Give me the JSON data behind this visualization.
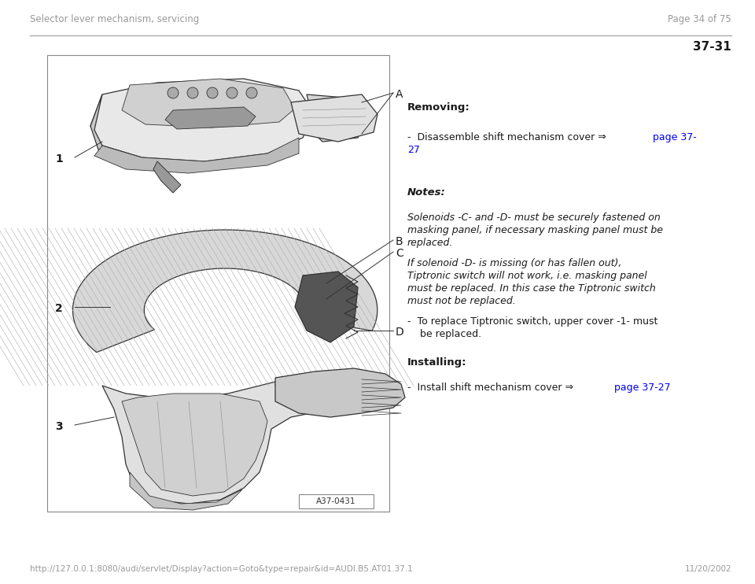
{
  "bg_color": "#ffffff",
  "header_left": "Selector lever mechanism, servicing",
  "header_right": "Page 34 of 75",
  "header_color": "#999999",
  "header_fontsize": 8.5,
  "section_number": "37-31",
  "section_fontsize": 11,
  "line_color": "#aaaaaa",
  "text_color": "#1a1a1a",
  "main_fontsize": 9,
  "link_color": "#0000ee",
  "diagram_ref": "A37-0431",
  "footer_left": "http://127.0.0.1:8080/audi/servlet/Display?action=Goto&type=repair&id=AUDI.B5.AT01.37.1",
  "footer_right": "11/20/2002",
  "footer_color": "#999999",
  "footer_fontsize": 7.5
}
